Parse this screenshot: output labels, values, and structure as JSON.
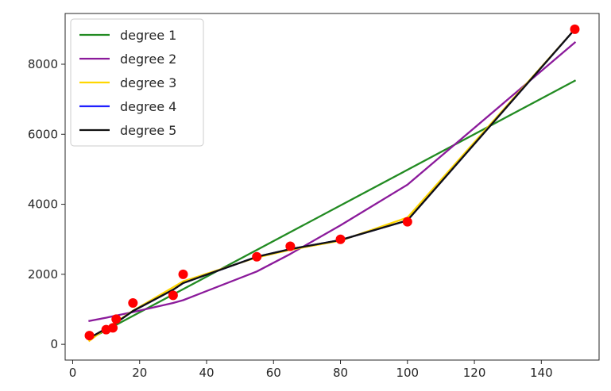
{
  "chart_data": {
    "type": "line",
    "title": "",
    "xlabel": "",
    "ylabel": "",
    "xlim": [
      -2.25,
      157.25
    ],
    "ylim": [
      -450,
      9450
    ],
    "xticks": [
      0,
      20,
      40,
      60,
      80,
      100,
      120,
      140
    ],
    "yticks": [
      0,
      2000,
      4000,
      6000,
      8000
    ],
    "grid": false,
    "legend_position": "top-left",
    "points": {
      "color": "#ff0000",
      "x": [
        5,
        10,
        12,
        13,
        18,
        30,
        33,
        55,
        65,
        80,
        100,
        150
      ],
      "y": [
        250,
        420,
        470,
        720,
        1180,
        1400,
        2000,
        2500,
        2800,
        3000,
        3500,
        9000
      ]
    },
    "series": [
      {
        "name": "degree 1",
        "color": "#228b22",
        "x": [
          5,
          150
        ],
        "y": [
          150,
          7530
        ]
      },
      {
        "name": "degree 2",
        "color": "#8b1a9b",
        "x": [
          5,
          10,
          12,
          13,
          18,
          30,
          33,
          55,
          65,
          80,
          100,
          150
        ],
        "y": [
          670,
          760,
          800,
          820,
          920,
          1180,
          1260,
          2080,
          2580,
          3400,
          4560,
          8620
        ]
      },
      {
        "name": "degree 3",
        "color": "#ffd700",
        "x": [
          5,
          10,
          12,
          13,
          18,
          30,
          33,
          55,
          65,
          80,
          100,
          150
        ],
        "y": [
          100,
          460,
          580,
          640,
          960,
          1630,
          1800,
          2480,
          2700,
          2960,
          3620,
          9000
        ]
      },
      {
        "name": "degree 4",
        "color": "#1f1fff",
        "x": [
          5,
          10,
          12,
          13,
          18,
          30,
          33,
          55,
          65,
          80,
          100,
          150
        ],
        "y": [
          180,
          450,
          560,
          620,
          950,
          1560,
          1750,
          2500,
          2720,
          2980,
          3540,
          9000
        ]
      },
      {
        "name": "degree 5",
        "color": "#111111",
        "x": [
          5,
          10,
          12,
          13,
          18,
          30,
          33,
          55,
          65,
          80,
          100,
          150
        ],
        "y": [
          180,
          450,
          560,
          620,
          950,
          1560,
          1750,
          2500,
          2720,
          2980,
          3540,
          9000
        ]
      }
    ]
  }
}
